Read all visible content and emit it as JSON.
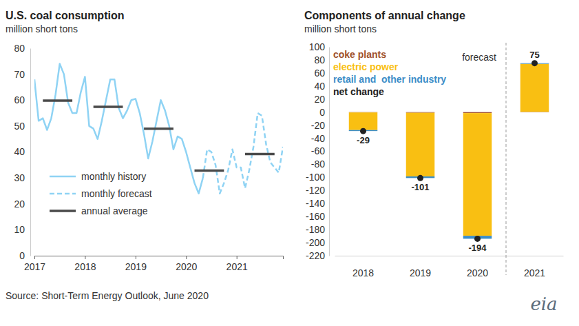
{
  "chart_data": [
    {
      "type": "line",
      "title": "U.S. coal consumption",
      "subtitle": "million short tons",
      "categories": [
        "2017",
        null,
        null,
        null,
        null,
        null,
        null,
        null,
        null,
        null,
        null,
        null,
        "2018",
        null,
        null,
        null,
        null,
        null,
        null,
        null,
        null,
        null,
        null,
        null,
        "2019",
        null,
        null,
        null,
        null,
        null,
        null,
        null,
        null,
        null,
        null,
        null,
        "2020",
        null,
        null,
        null,
        null,
        null,
        null,
        null,
        null,
        null,
        null,
        null,
        "2021",
        null,
        null,
        null,
        null,
        null,
        null,
        null,
        null,
        null,
        null,
        null
      ],
      "series": [
        {
          "name": "monthly history",
          "type": "line",
          "line_style": "solid",
          "color": "#8fd3f4",
          "values": [
            68,
            52,
            53,
            48.5,
            53,
            62,
            74,
            70,
            59,
            55,
            55,
            63,
            69,
            50,
            49,
            45,
            52,
            60,
            68,
            68,
            57,
            53,
            56,
            60,
            60.5,
            55,
            47,
            37.5,
            44,
            52,
            60,
            56,
            50,
            41,
            46,
            45,
            40,
            34,
            28,
            24,
            30,
            null,
            null,
            null,
            null,
            null,
            null,
            null,
            null,
            null,
            null,
            null,
            null,
            null,
            null,
            null,
            null,
            null,
            null,
            null
          ]
        },
        {
          "name": "monthly forecast",
          "type": "line",
          "line_style": "dashed",
          "color": "#8fd3f4",
          "values": [
            null,
            null,
            null,
            null,
            null,
            null,
            null,
            null,
            null,
            null,
            null,
            null,
            null,
            null,
            null,
            null,
            null,
            null,
            null,
            null,
            null,
            null,
            null,
            null,
            null,
            null,
            null,
            null,
            null,
            null,
            null,
            null,
            null,
            null,
            null,
            null,
            null,
            null,
            null,
            null,
            30,
            41,
            40,
            35,
            24,
            28,
            33,
            41,
            34,
            34,
            26,
            33,
            42,
            55,
            54,
            43,
            36,
            34,
            32,
            42
          ]
        },
        {
          "name": "annual average",
          "type": "line",
          "line_style": "solid",
          "color": "#4a4a4a",
          "values": [
            null,
            null,
            59.8,
            59.8,
            59.8,
            59.8,
            59.8,
            59.8,
            59.8,
            59.8,
            null,
            null,
            null,
            null,
            57.4,
            57.4,
            57.4,
            57.4,
            57.4,
            57.4,
            57.4,
            57.4,
            null,
            null,
            null,
            null,
            49,
            49,
            49,
            49,
            49,
            49,
            49,
            49,
            null,
            null,
            null,
            null,
            32.8,
            32.8,
            32.8,
            32.8,
            32.8,
            32.8,
            32.8,
            32.8,
            null,
            null,
            null,
            null,
            39.2,
            39.2,
            39.2,
            39.2,
            39.2,
            39.2,
            39.2,
            39.2,
            null,
            null
          ]
        }
      ],
      "ylim": [
        0,
        80
      ],
      "yticks": [
        0,
        10,
        20,
        30,
        40,
        50,
        60,
        70,
        80
      ],
      "grid": false,
      "legend": "lower left"
    },
    {
      "type": "bar",
      "title": "Components of annual change",
      "subtitle": "million short tons",
      "annotations": [
        "forecast"
      ],
      "categories": [
        "2018",
        "2019",
        "2020",
        "2021"
      ],
      "stacked": true,
      "series": [
        {
          "name": "coke plants",
          "type": "bar",
          "color": "#a0522d",
          "values": [
            -0.5,
            -1,
            -1.5,
            0.5
          ]
        },
        {
          "name": "electric power",
          "type": "bar",
          "color": "#f9bf12",
          "values": [
            -27,
            -97.5,
            -188,
            73.5
          ]
        },
        {
          "name": "retail and  other industry",
          "type": "bar",
          "color": "#3b8dc8",
          "values": [
            -1.5,
            -2.5,
            -4.5,
            1
          ]
        },
        {
          "name": "net change",
          "type": "scatter",
          "marker": "circle",
          "color": "#222222",
          "data_labels": true,
          "values": [
            -29,
            -101,
            -194,
            75
          ]
        }
      ],
      "ylim": [
        -220,
        100
      ],
      "yticks": [
        -220,
        -200,
        -180,
        -160,
        -140,
        -120,
        -100,
        -80,
        -60,
        -40,
        -20,
        0,
        20,
        40,
        60,
        80,
        100
      ],
      "grid": false,
      "legend": "upper left"
    }
  ],
  "source": "Source: Short-Term Energy Outlook, June 2020",
  "logo": "eia"
}
